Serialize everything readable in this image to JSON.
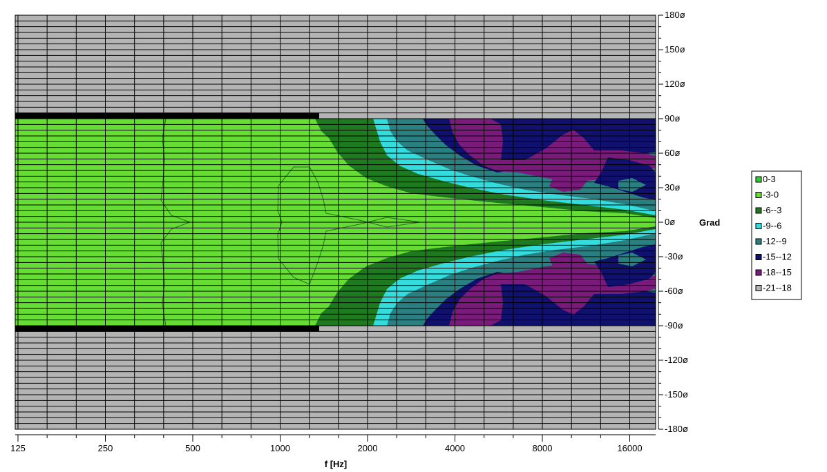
{
  "chart_data": {
    "type": "heatmap",
    "xlabel": "f [Hz]",
    "ylabel_unit": "Grad",
    "x_ticks": [
      "125",
      "250",
      "500",
      "1000",
      "2000",
      "4000",
      "8000",
      "16000"
    ],
    "x_scale": "log2",
    "x_range_hz": [
      125,
      22000
    ],
    "y_ticks": [
      "180ø",
      "150ø",
      "120ø",
      "90ø",
      "60ø",
      "30ø",
      "0ø",
      "-30ø",
      "-60ø",
      "-90ø",
      "-120ø",
      "-150ø",
      "-180ø"
    ],
    "y_range": [
      -180,
      180
    ],
    "grid": true,
    "legend_position": "right",
    "legend": [
      {
        "label": "0-3",
        "color": "#33cc33"
      },
      {
        "label": "-3-0",
        "color": "#66dd33"
      },
      {
        "label": "-6--3",
        "color": "#1e7a1e"
      },
      {
        "label": "-9--6",
        "color": "#33dddd"
      },
      {
        "label": "-12--9",
        "color": "#2a8080"
      },
      {
        "label": "-15--12",
        "color": "#10106e"
      },
      {
        "label": "-18--15",
        "color": "#7a1a7a"
      },
      {
        "label": "-21--18",
        "color": "#b4b4b4"
      }
    ],
    "contours": [
      {
        "level": "-21--18",
        "note": "background, |angle| > 90"
      },
      {
        "level": "-3-0",
        "freq_hz": [
          125,
          22000
        ],
        "angle_deg": [
          -90,
          90
        ]
      },
      {
        "level": "-6--3",
        "points_upper": [
          [
            1500,
            90
          ],
          [
            1900,
            55
          ],
          [
            2800,
            38
          ],
          [
            4000,
            28
          ],
          [
            8000,
            14
          ],
          [
            22000,
            5
          ]
        ]
      },
      {
        "level": "-9--6",
        "points_upper": [
          [
            2400,
            90
          ],
          [
            3000,
            60
          ],
          [
            4000,
            40
          ],
          [
            8000,
            20
          ],
          [
            22000,
            7
          ]
        ]
      },
      {
        "level": "-12--9",
        "points_upper": [
          [
            2900,
            90
          ],
          [
            3600,
            60
          ],
          [
            6000,
            35
          ],
          [
            12000,
            20
          ],
          [
            22000,
            10
          ]
        ]
      },
      {
        "level": "-15--12",
        "points_upper": [
          [
            3600,
            90
          ],
          [
            4400,
            60
          ],
          [
            6000,
            50
          ],
          [
            12000,
            40
          ],
          [
            22000,
            25
          ]
        ]
      },
      {
        "level": "-18--15",
        "points_upper": [
          [
            4000,
            90
          ],
          [
            5200,
            75
          ],
          [
            10000,
            85
          ],
          [
            16000,
            60
          ],
          [
            22000,
            50
          ]
        ]
      }
    ]
  }
}
